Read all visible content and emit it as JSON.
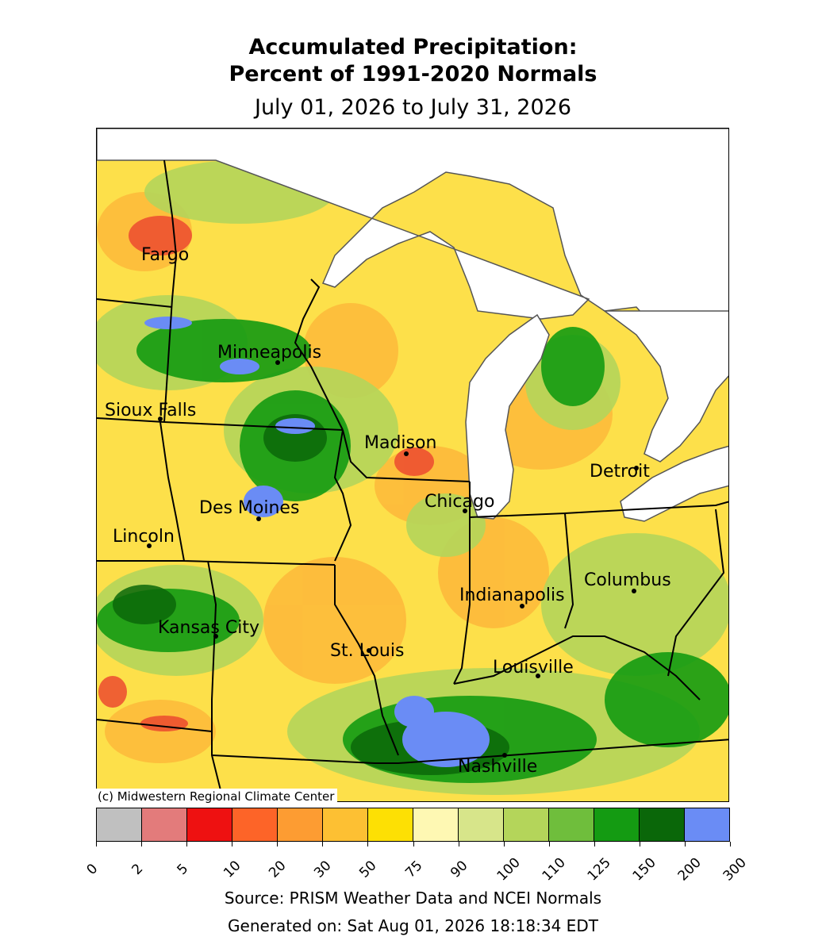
{
  "title_line1": "Accumulated Precipitation:",
  "title_line2": "Percent of 1991-2020 Normals",
  "subtitle": "July 01, 2026 to July 31, 2026",
  "copyright": "(c) Midwestern Regional Climate Center",
  "source": "Source: PRISM Weather Data and NCEI Normals",
  "generated": "Generated on: Sat Aug 01, 2026 18:18:34 EDT",
  "cities": [
    {
      "name": "Fargo"
    },
    {
      "name": "Minneapolis"
    },
    {
      "name": "Sioux Falls"
    },
    {
      "name": "Madison"
    },
    {
      "name": "Detroit"
    },
    {
      "name": "Chicago"
    },
    {
      "name": "Des Moines"
    },
    {
      "name": "Lincoln"
    },
    {
      "name": "Columbus"
    },
    {
      "name": "Indianapolis"
    },
    {
      "name": "Kansas City"
    },
    {
      "name": "St. Louis"
    },
    {
      "name": "Louisville"
    },
    {
      "name": "Nashville"
    }
  ],
  "legend": {
    "ticks": [
      "0",
      "2",
      "5",
      "10",
      "20",
      "30",
      "50",
      "75",
      "90",
      "100",
      "110",
      "125",
      "150",
      "200",
      "300"
    ],
    "colors": [
      "#c0c0c0",
      "#e37b7b",
      "#ee1111",
      "#fd6428",
      "#fd9c32",
      "#fdc033",
      "#fde004",
      "#fef8b3",
      "#d7e58a",
      "#b4d55a",
      "#6fbe3c",
      "#149b12",
      "#0a6709",
      "#6a8cf5"
    ]
  }
}
